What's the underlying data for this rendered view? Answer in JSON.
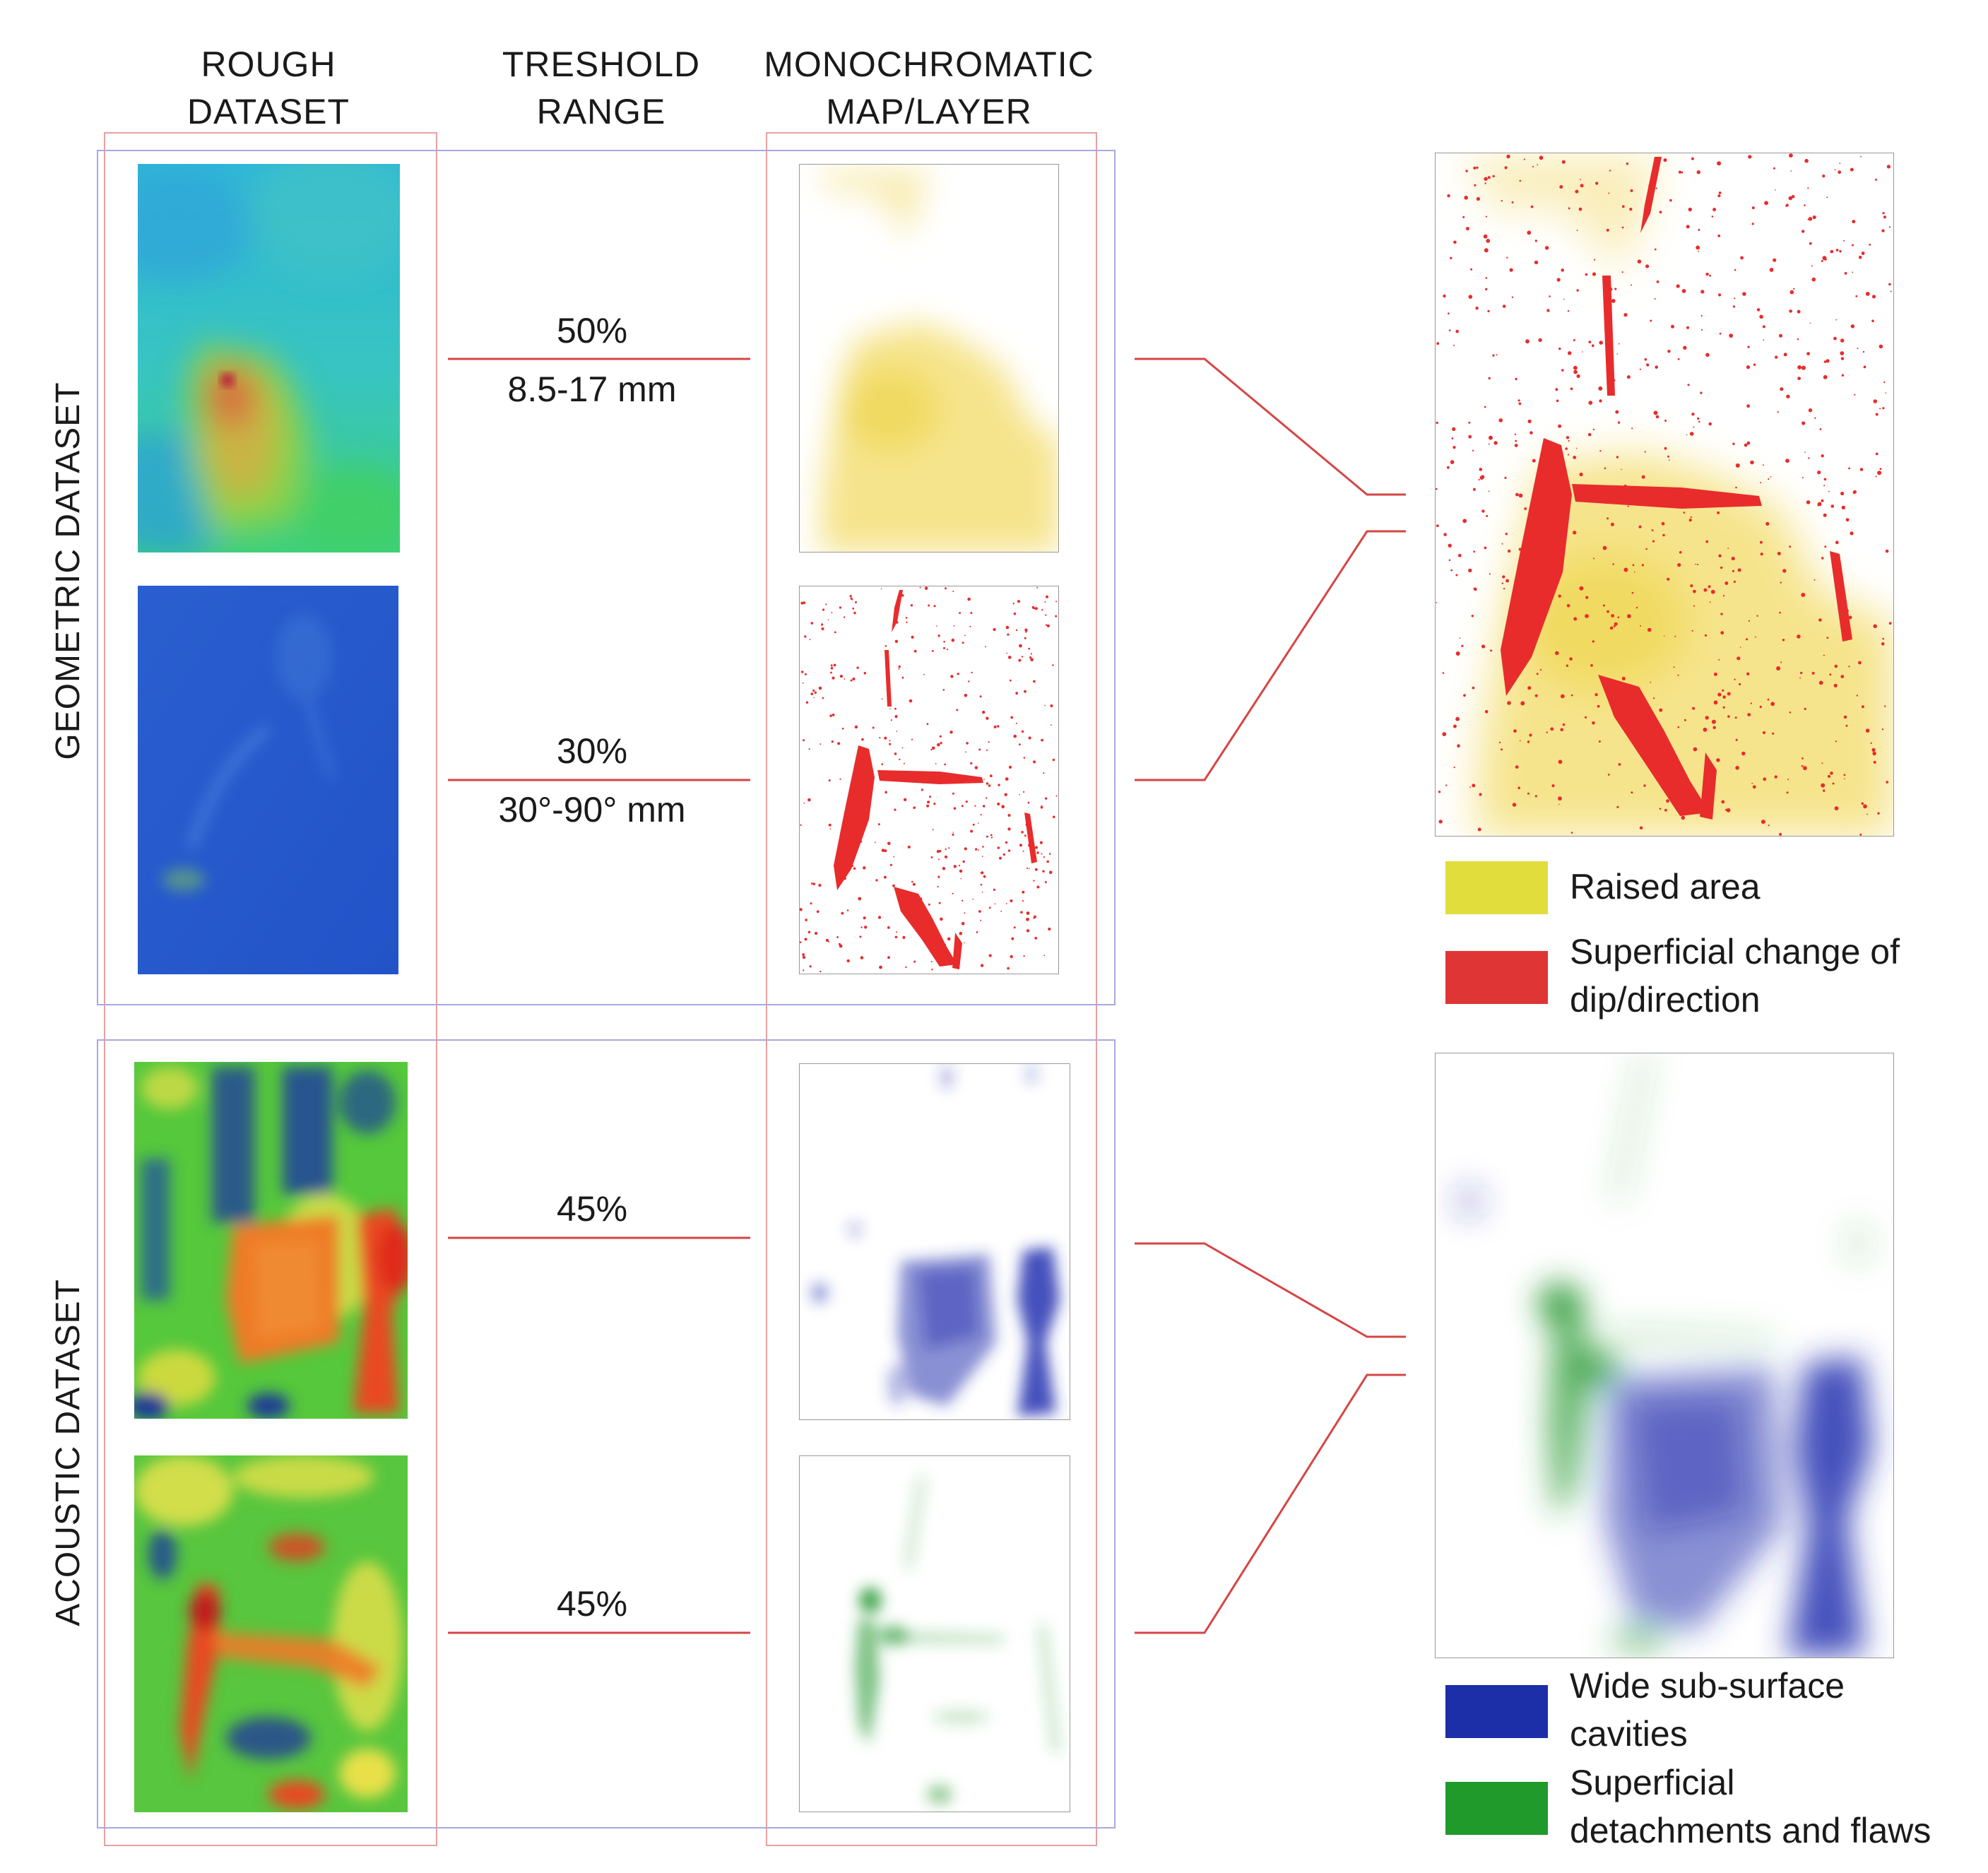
{
  "headers": {
    "rough_line1": "ROUGH",
    "rough_line2": "DATASET",
    "threshold_line1": "TRESHOLD",
    "threshold_line2": "RANGE",
    "mono_line1": "MONOCHROMATIC",
    "mono_line2": "MAP/LAYER"
  },
  "row_labels": {
    "geometric": "GEOMETRIC DATASET",
    "acoustic": "ACOUSTIC DATASET"
  },
  "thresholds": [
    {
      "percent": "50%",
      "range": "8.5-17 mm"
    },
    {
      "percent": "30%",
      "range": "30°-90° mm"
    },
    {
      "percent": "45%",
      "range": ""
    },
    {
      "percent": "45%",
      "range": ""
    }
  ],
  "legend_geometric": [
    {
      "color": "#e0dd3c",
      "line1": "Raised area",
      "line2": ""
    },
    {
      "color": "#e03535",
      "line1": "Superficial change of",
      "line2": "dip/direction"
    }
  ],
  "legend_acoustic": [
    {
      "color": "#1c2fa8",
      "line1": "Wide sub-surface",
      "line2": "cavities"
    },
    {
      "color": "#1f9a2b",
      "line1": "Superficial",
      "line2": "detachments and flaws"
    }
  ],
  "colors": {
    "connector": "#d64545",
    "frame_red": "#e8a0a0",
    "frame_blue": "#a8a8e0",
    "raised": "#f4e27a",
    "dip": "#e82c2c",
    "cavity": "#2633b0",
    "flaw": "#2a9a33"
  }
}
